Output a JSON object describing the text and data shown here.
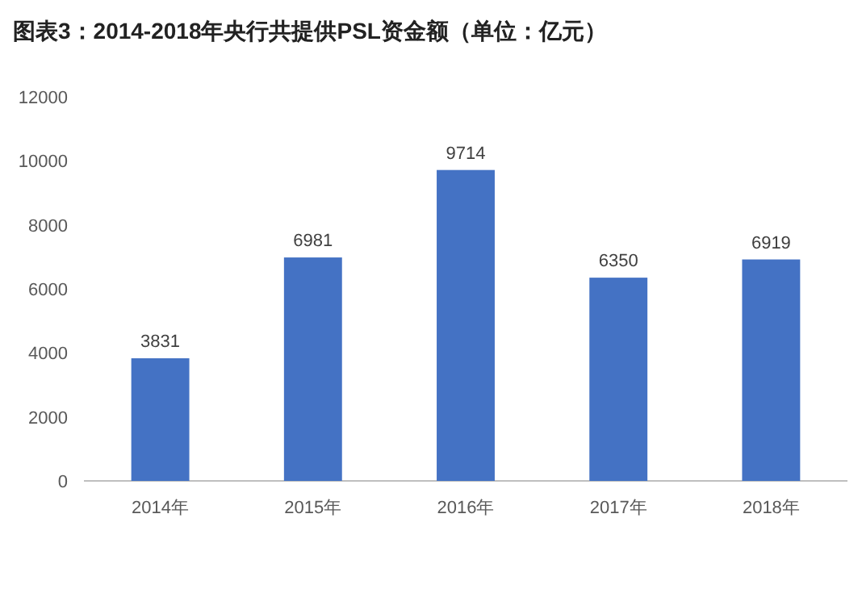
{
  "chart_data": {
    "type": "bar",
    "title": "图表3：2014-2018年央行共提供PSL资金额（单位：亿元）",
    "categories": [
      "2014年",
      "2015年",
      "2016年",
      "2017年",
      "2018年"
    ],
    "values": [
      3831,
      6981,
      9714,
      6350,
      6919
    ],
    "color": "#4472c4",
    "ylim": [
      0,
      12000
    ],
    "yticks": [
      0,
      2000,
      4000,
      6000,
      8000,
      10000,
      12000
    ],
    "grid": false,
    "data_labels": true
  }
}
